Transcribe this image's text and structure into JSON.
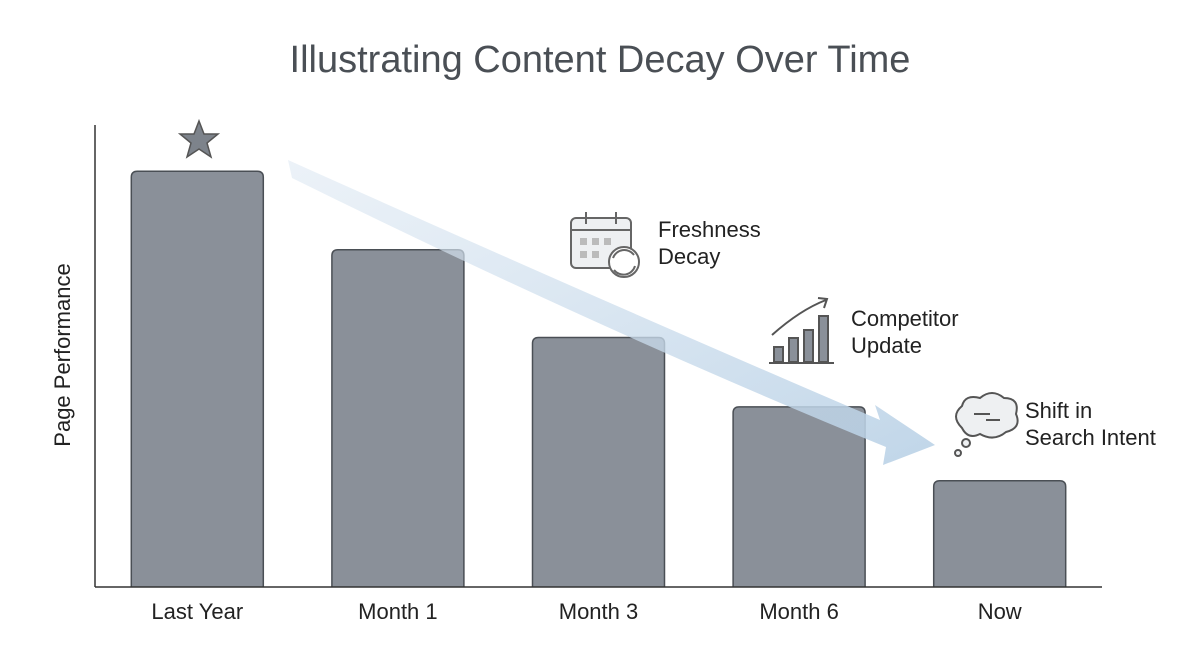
{
  "chart_data": {
    "type": "bar",
    "title": "Illustrating Content Decay Over Time",
    "y_label": "Page Performance",
    "categories": [
      "Last Year",
      "Month 1",
      "Month 3",
      "Month 6",
      "Now"
    ],
    "values": [
      90,
      73,
      54,
      39,
      23
    ],
    "color": "#8a9099",
    "ylim": [
      0,
      100
    ],
    "annotations": [
      {
        "lines": [
          "Freshness",
          "Decay"
        ]
      },
      {
        "lines": [
          "Competitor",
          "Update"
        ]
      },
      {
        "lines": [
          "Shift in",
          "Search Intent"
        ]
      }
    ]
  }
}
